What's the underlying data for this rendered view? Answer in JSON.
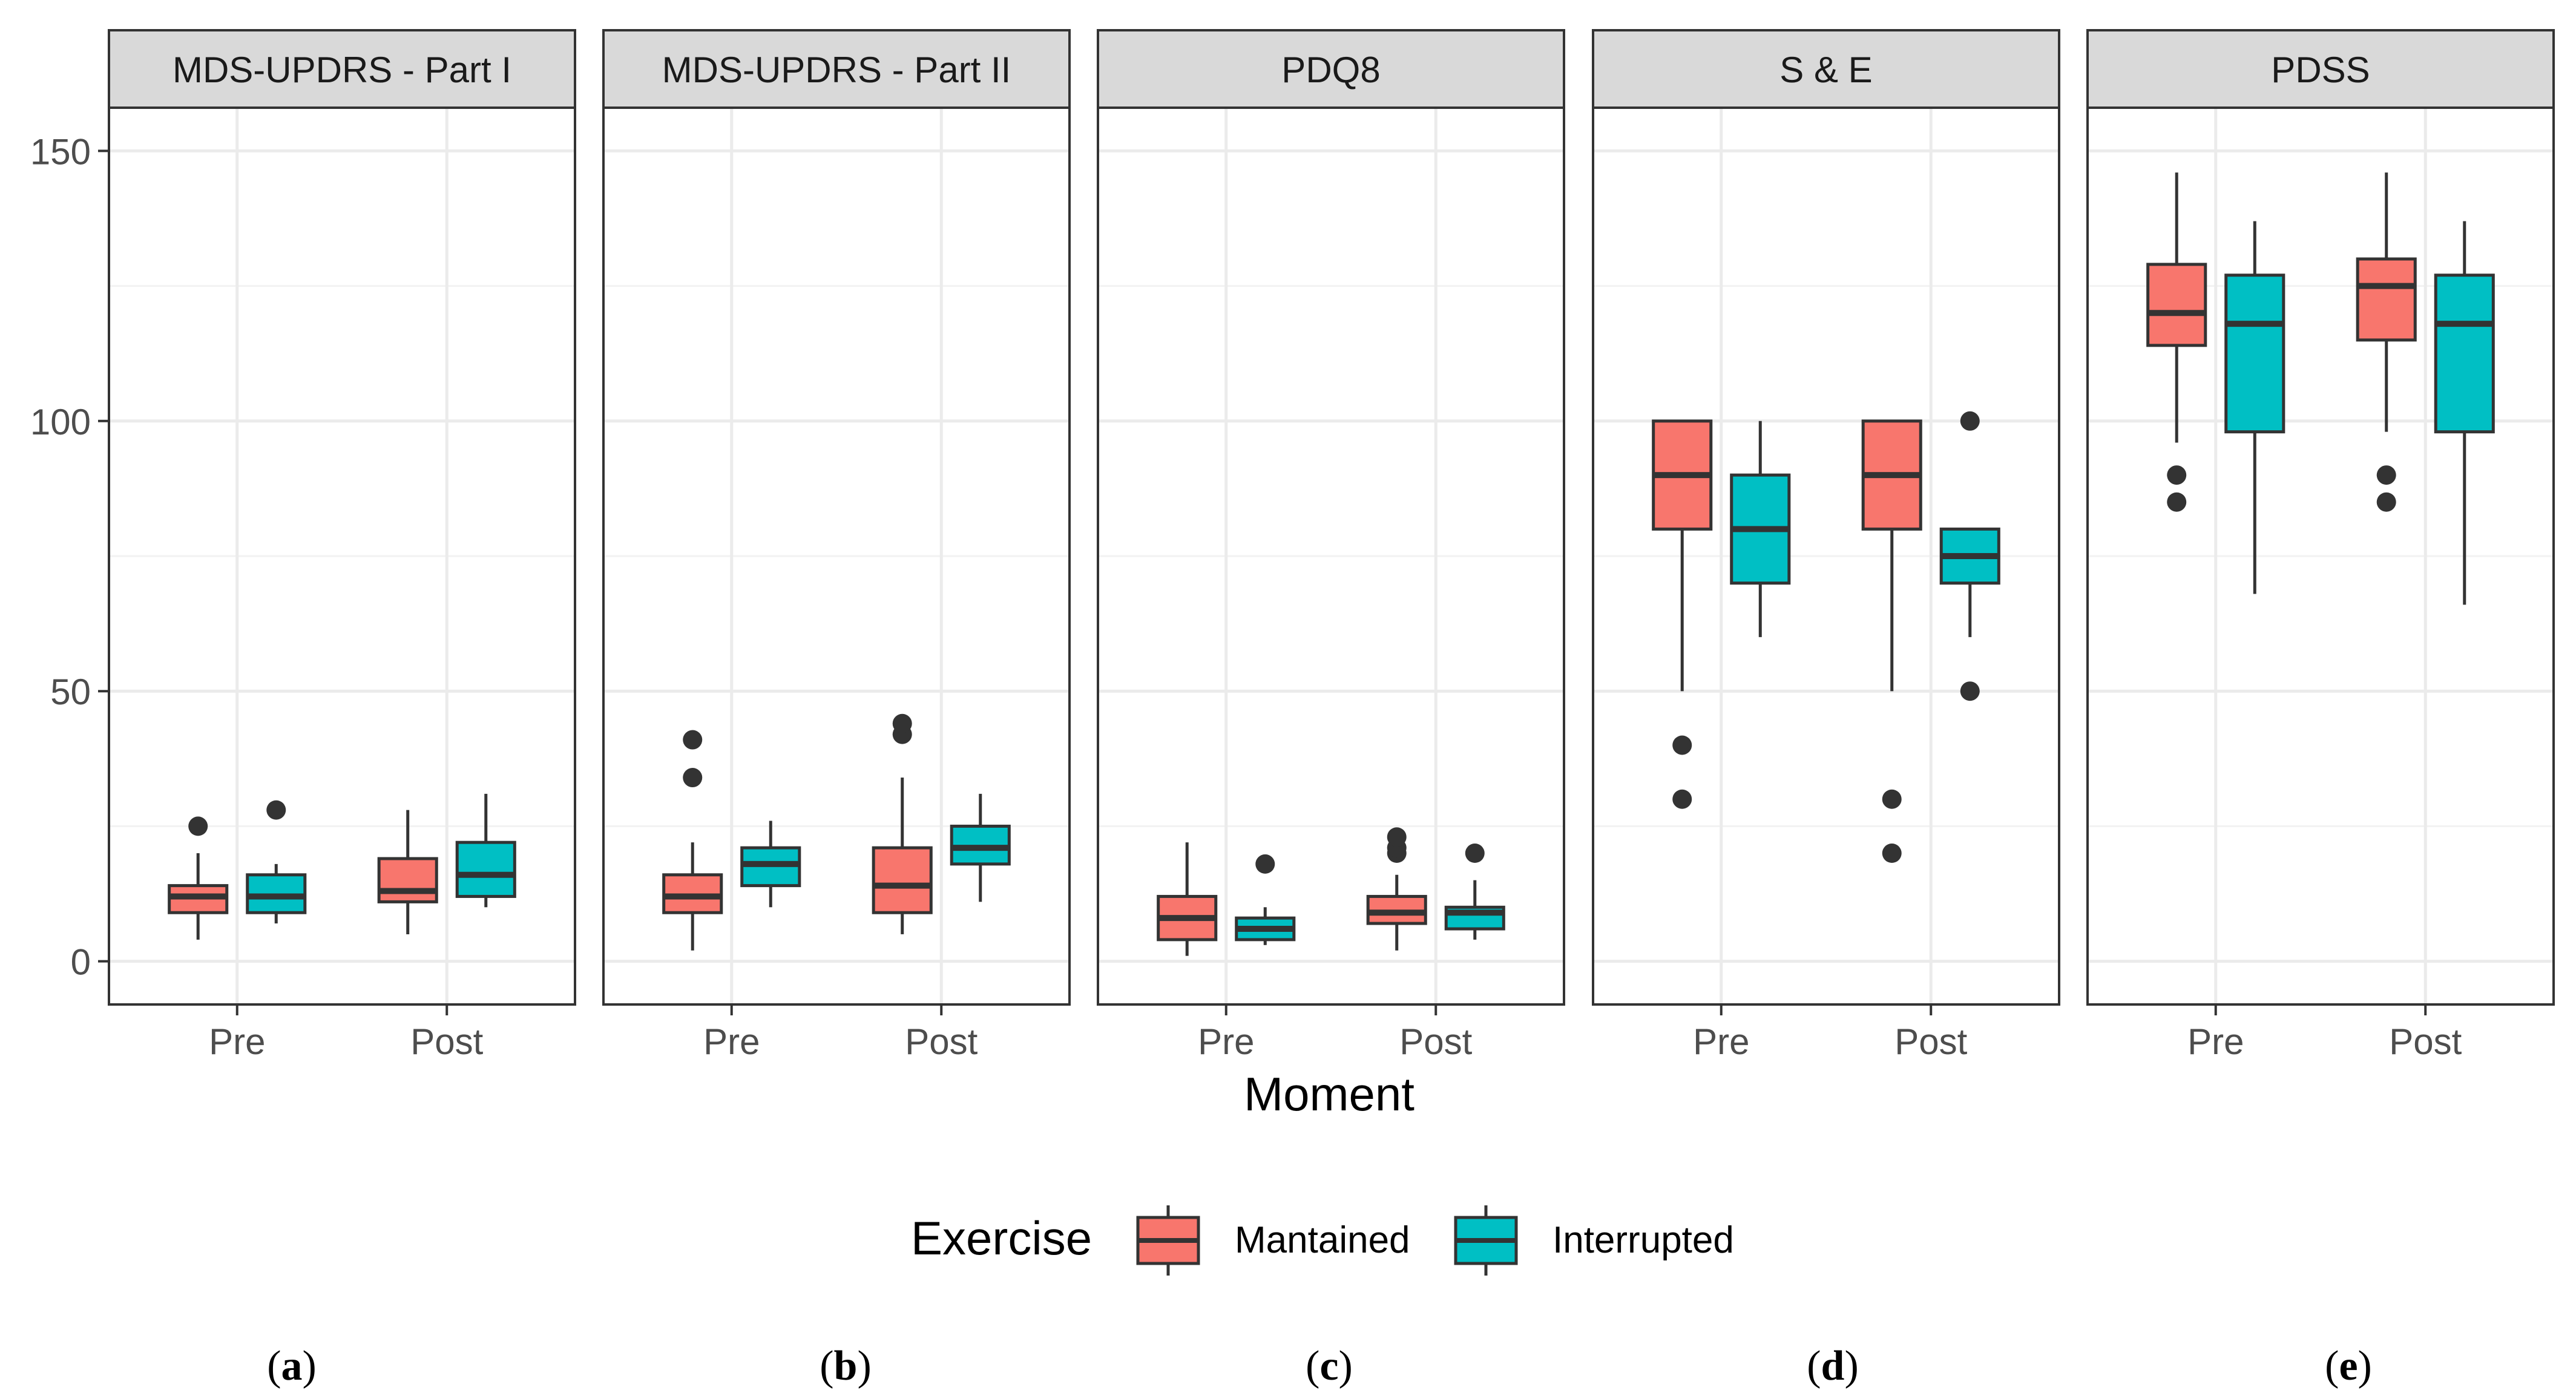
{
  "chart_data": {
    "type": "boxplot",
    "xlabel": "Moment",
    "categories": [
      "Pre",
      "Post"
    ],
    "ylim": [
      -8,
      158
    ],
    "yticks": [
      0,
      50,
      100,
      150
    ],
    "legend": {
      "title": "Exercise",
      "position": "bottom",
      "entries": [
        {
          "name": "Mantained",
          "color": "#F8766D"
        },
        {
          "name": "Interrupted",
          "color": "#00BFC4"
        }
      ]
    },
    "panels": [
      {
        "title": "MDS-UPDRS - Part I",
        "caption": "a",
        "series": [
          {
            "name": "Mantained",
            "boxes": [
              {
                "category": "Pre",
                "min": 4,
                "q1": 9,
                "median": 12,
                "q3": 14,
                "max": 20,
                "outliers": [
                  25
                ]
              },
              {
                "category": "Post",
                "min": 5,
                "q1": 11,
                "median": 13,
                "q3": 19,
                "max": 28,
                "outliers": []
              }
            ]
          },
          {
            "name": "Interrupted",
            "boxes": [
              {
                "category": "Pre",
                "min": 7,
                "q1": 9,
                "median": 12,
                "q3": 16,
                "max": 18,
                "outliers": [
                  28
                ]
              },
              {
                "category": "Post",
                "min": 10,
                "q1": 12,
                "median": 16,
                "q3": 22,
                "max": 31,
                "outliers": []
              }
            ]
          }
        ]
      },
      {
        "title": "MDS-UPDRS - Part II",
        "caption": "b",
        "series": [
          {
            "name": "Mantained",
            "boxes": [
              {
                "category": "Pre",
                "min": 2,
                "q1": 9,
                "median": 12,
                "q3": 16,
                "max": 22,
                "outliers": [
                  34,
                  41
                ]
              },
              {
                "category": "Post",
                "min": 5,
                "q1": 9,
                "median": 14,
                "q3": 21,
                "max": 34,
                "outliers": [
                  42,
                  44
                ]
              }
            ]
          },
          {
            "name": "Interrupted",
            "boxes": [
              {
                "category": "Pre",
                "min": 10,
                "q1": 14,
                "median": 18,
                "q3": 21,
                "max": 26,
                "outliers": []
              },
              {
                "category": "Post",
                "min": 11,
                "q1": 18,
                "median": 21,
                "q3": 25,
                "max": 31,
                "outliers": []
              }
            ]
          }
        ]
      },
      {
        "title": "PDQ8",
        "caption": "c",
        "series": [
          {
            "name": "Mantained",
            "boxes": [
              {
                "category": "Pre",
                "min": 1,
                "q1": 4,
                "median": 8,
                "q3": 12,
                "max": 22,
                "outliers": []
              },
              {
                "category": "Post",
                "min": 2,
                "q1": 7,
                "median": 9,
                "q3": 12,
                "max": 16,
                "outliers": [
                  20,
                  21,
                  23
                ]
              }
            ]
          },
          {
            "name": "Interrupted",
            "boxes": [
              {
                "category": "Pre",
                "min": 3,
                "q1": 4,
                "median": 6,
                "q3": 8,
                "max": 10,
                "outliers": [
                  18
                ]
              },
              {
                "category": "Post",
                "min": 4,
                "q1": 6,
                "median": 9,
                "q3": 10,
                "max": 15,
                "outliers": [
                  20
                ]
              }
            ]
          }
        ]
      },
      {
        "title": "S & E",
        "caption": "d",
        "series": [
          {
            "name": "Mantained",
            "boxes": [
              {
                "category": "Pre",
                "min": 50,
                "q1": 80,
                "median": 90,
                "q3": 100,
                "max": 100,
                "outliers": [
                  30,
                  40
                ]
              },
              {
                "category": "Post",
                "min": 50,
                "q1": 80,
                "median": 90,
                "q3": 100,
                "max": 100,
                "outliers": [
                  20,
                  30
                ]
              }
            ]
          },
          {
            "name": "Interrupted",
            "boxes": [
              {
                "category": "Pre",
                "min": 60,
                "q1": 70,
                "median": 80,
                "q3": 90,
                "max": 100,
                "outliers": []
              },
              {
                "category": "Post",
                "min": 60,
                "q1": 70,
                "median": 75,
                "q3": 80,
                "max": 80,
                "outliers": [
                  50,
                  100
                ]
              }
            ]
          }
        ]
      },
      {
        "title": "PDSS",
        "caption": "e",
        "series": [
          {
            "name": "Mantained",
            "boxes": [
              {
                "category": "Pre",
                "min": 96,
                "q1": 114,
                "median": 120,
                "q3": 129,
                "max": 146,
                "outliers": [
                  85,
                  90
                ]
              },
              {
                "category": "Post",
                "min": 98,
                "q1": 115,
                "median": 125,
                "q3": 130,
                "max": 146,
                "outliers": [
                  85,
                  90
                ]
              }
            ]
          },
          {
            "name": "Interrupted",
            "boxes": [
              {
                "category": "Pre",
                "min": 68,
                "q1": 98,
                "median": 118,
                "q3": 127,
                "max": 137,
                "outliers": []
              },
              {
                "category": "Post",
                "min": 66,
                "q1": 98,
                "median": 118,
                "q3": 127,
                "max": 137,
                "outliers": []
              }
            ]
          }
        ]
      }
    ]
  }
}
